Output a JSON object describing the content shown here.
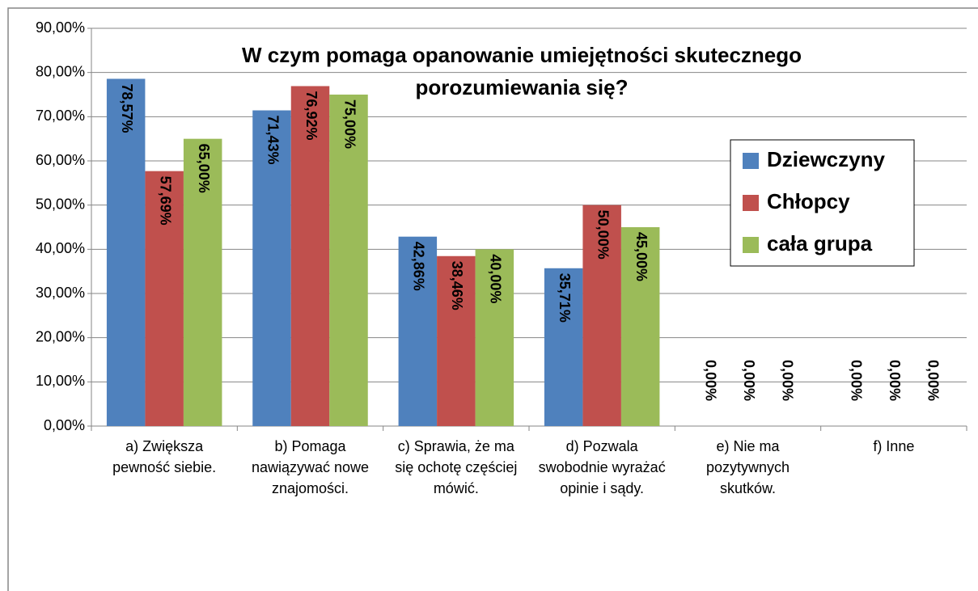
{
  "chart_data": {
    "type": "bar",
    "title": "W czym pomaga opanowanie umiejętności skutecznego porozumiewania się?",
    "categories": [
      "a) Zwiększa pewność siebie.",
      "b) Pomaga nawiązywać nowe znajomości.",
      "c) Sprawia, że ma się ochotę częściej mówić.",
      "d) Pozwala swobodnie wyrażać opinie i sądy.",
      "e) Nie ma pozytywnych skutków.",
      "f) Inne"
    ],
    "series": [
      {
        "name": "Dziewczyny",
        "color": "#4f81bd",
        "values": [
          78.57,
          71.43,
          42.86,
          35.71,
          0,
          0
        ],
        "value_labels": [
          "78,57%",
          "71,43%",
          "42,86%",
          "35,71%",
          "0,00%",
          "0,00%"
        ]
      },
      {
        "name": "Chłopcy",
        "color": "#c0504d",
        "values": [
          57.69,
          76.92,
          38.46,
          50,
          0,
          0
        ],
        "value_labels": [
          "57,69%",
          "76,92%",
          "38,46%",
          "50,00%",
          "0,00%",
          "0,00%"
        ]
      },
      {
        "name": "cała grupa",
        "color": "#9bbb59",
        "values": [
          65,
          75,
          40,
          45,
          0,
          0
        ],
        "value_labels": [
          "65,00%",
          "75,00%",
          "40,00%",
          "45,00%",
          "0,00%",
          "0,00%"
        ]
      }
    ],
    "ylim": [
      0,
      90
    ],
    "yticks": [
      {
        "value": 0,
        "label": "0,00%"
      },
      {
        "value": 10,
        "label": "10,00%"
      },
      {
        "value": 20,
        "label": "20,00%"
      },
      {
        "value": 30,
        "label": "30,00%"
      },
      {
        "value": 40,
        "label": "40,00%"
      },
      {
        "value": 50,
        "label": "50,00%"
      },
      {
        "value": 60,
        "label": "60,00%"
      },
      {
        "value": 70,
        "label": "70,00%"
      },
      {
        "value": 80,
        "label": "80,00%"
      },
      {
        "value": 90,
        "label": "90,00%"
      }
    ],
    "grid": true,
    "legend": "right"
  }
}
